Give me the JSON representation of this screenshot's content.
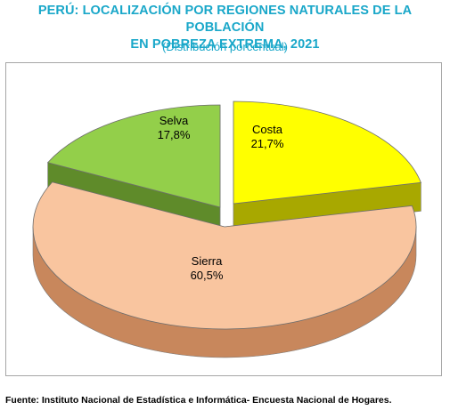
{
  "title_line1": "PERÚ: LOCALIZACIÓN POR REGIONES NATURALES DE LA POBLACIÓN",
  "title_line2": "EN POBREZA EXTREMA, 2021",
  "subtitle": "(Distribución porcentual)",
  "source": "Fuente: Instituto Nacional de Estadística e Informática- Encuesta Nacional de Hogares.",
  "chart_data": {
    "type": "pie",
    "title": "PERÚ: LOCALIZACIÓN POR REGIONES NATURALES DE LA POBLACIÓN EN POBREZA EXTREMA, 2021",
    "subtitle": "(Distribución porcentual)",
    "style": "3d-exploded",
    "slices": [
      {
        "label": "Costa",
        "value": 21.7,
        "value_label": "21,7%",
        "color": "#ffff00",
        "side_color": "#a8a800"
      },
      {
        "label": "Sierra",
        "value": 60.5,
        "value_label": "60,5%",
        "color": "#f9c59f",
        "side_color": "#c8875c"
      },
      {
        "label": "Selva",
        "value": 17.8,
        "value_label": "17,8%",
        "color": "#93cf4a",
        "side_color": "#5f8b2a"
      }
    ]
  }
}
